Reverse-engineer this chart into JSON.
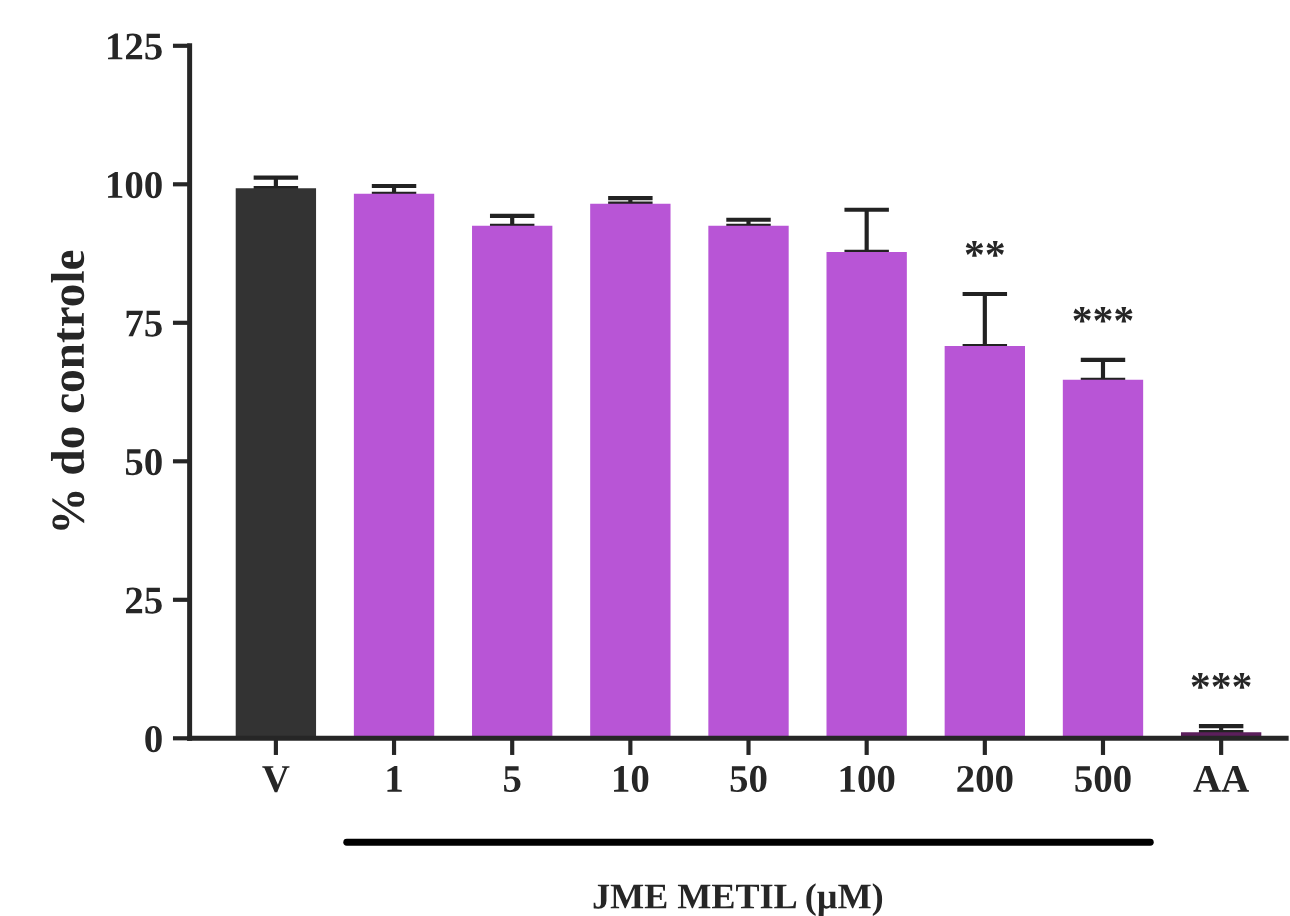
{
  "chart_data": {
    "type": "bar",
    "ylabel": "% do controle",
    "xlabel": "JME METIL (µM)",
    "categories": [
      "V",
      "1",
      "5",
      "10",
      "50",
      "100",
      "200",
      "500",
      "AA"
    ],
    "values": [
      99.3,
      98.3,
      92.5,
      96.5,
      92.5,
      87.8,
      70.8,
      64.7,
      1.1
    ],
    "colors": [
      "#333333",
      "#b855d6",
      "#b855d6",
      "#b855d6",
      "#b855d6",
      "#b855d6",
      "#b855d6",
      "#b855d6",
      "#5c1f5c"
    ],
    "errors": [
      [
        99.3,
        101.2
      ],
      [
        98.3,
        99.7
      ],
      [
        92.5,
        94.3
      ],
      [
        96.5,
        97.5
      ],
      [
        92.5,
        93.6
      ],
      [
        87.8,
        95.4
      ],
      [
        70.8,
        80.2
      ],
      [
        64.7,
        68.3
      ],
      [
        1.1,
        2.2
      ]
    ],
    "ylim": [
      0,
      125
    ],
    "yticks": [
      0,
      25,
      50,
      75,
      100,
      125
    ],
    "grid": false,
    "annotations": [
      {
        "text": "**",
        "x": "200",
        "y": 80.2
      },
      {
        "text": "***",
        "x": "500",
        "y": 68.3
      },
      {
        "text": "***",
        "x": "AA",
        "y": 2.2
      }
    ]
  }
}
